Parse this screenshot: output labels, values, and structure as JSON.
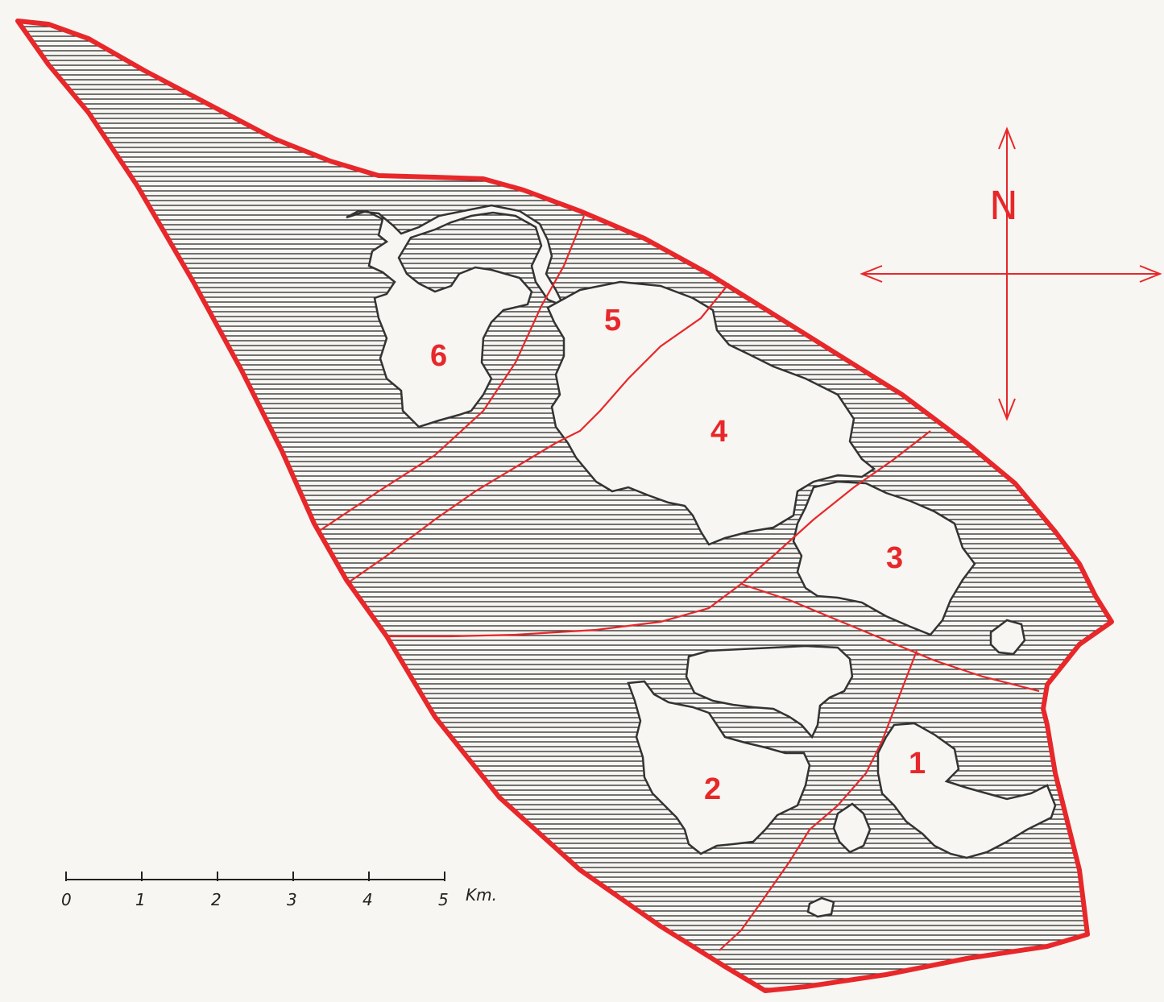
{
  "colors": {
    "boundary": "#e8272a",
    "water_lines": "#2a2a2a",
    "land": "#f7f6f2",
    "land_outline": "#333333",
    "labels": "#e8272a",
    "scale": "#222222"
  },
  "zones": [
    {
      "id": "1",
      "label": "1"
    },
    {
      "id": "2",
      "label": "2"
    },
    {
      "id": "3",
      "label": "3"
    },
    {
      "id": "4",
      "label": "4"
    },
    {
      "id": "5",
      "label": "5"
    },
    {
      "id": "6",
      "label": "6"
    }
  ],
  "north_arrow": {
    "label": "N",
    "icon": "compass-cross-icon"
  },
  "scale_bar": {
    "ticks": [
      "0",
      "1",
      "2",
      "3",
      "4",
      "5"
    ],
    "unit": "Km."
  }
}
